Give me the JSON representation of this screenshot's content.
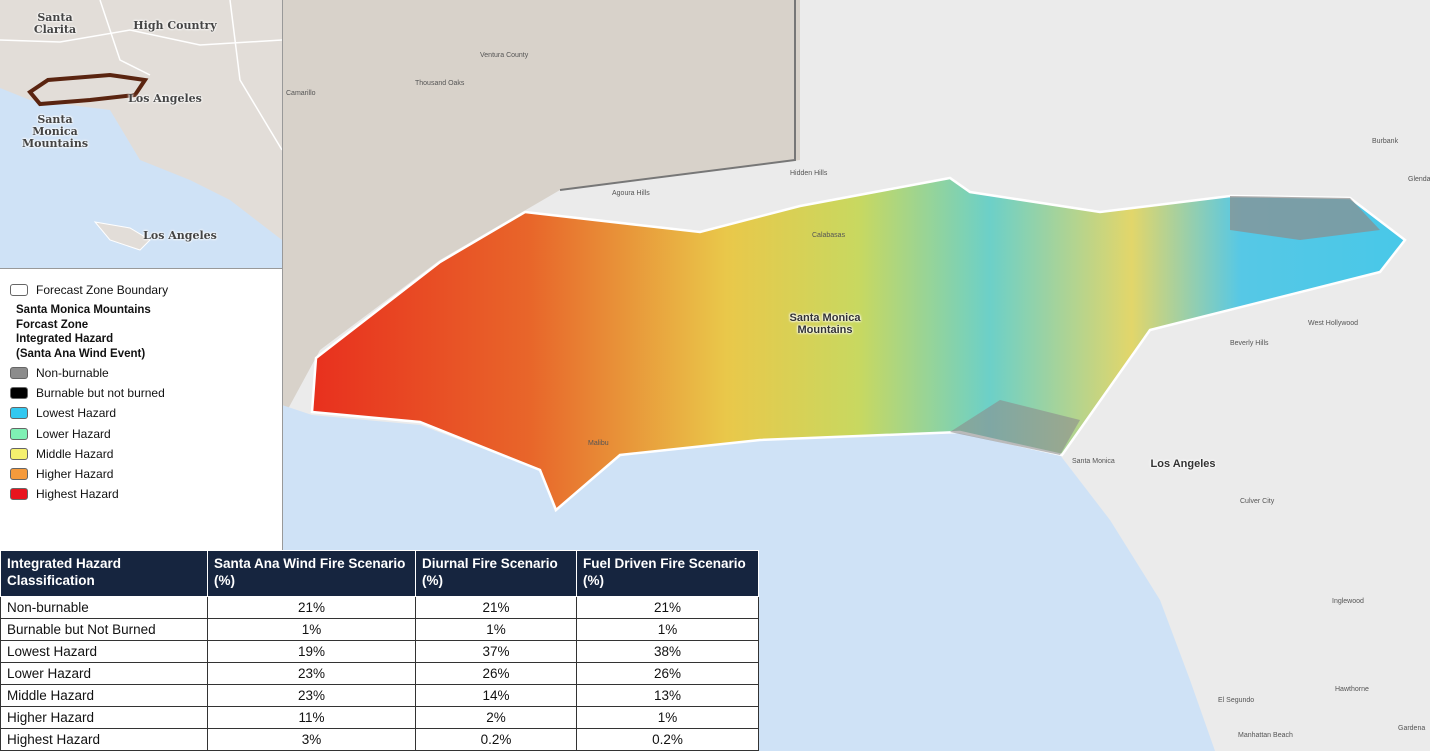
{
  "inset_map": {
    "labels": [
      "Santa Clarita",
      "High Country",
      "Los Angeles",
      "Santa Monica Mountains",
      "Los Angeles"
    ]
  },
  "legend": {
    "boundary": "Forecast Zone Boundary",
    "title": [
      "Santa Monica Mountains",
      "Forcast Zone",
      "Integrated Hazard",
      "(Santa Ana Wind Event)"
    ],
    "items": [
      {
        "label": "Non-burnable",
        "color": "#8c8c8c"
      },
      {
        "label": "Burnable but not burned",
        "color": "#000000"
      },
      {
        "label": "Lowest Hazard",
        "color": "#33c8f0"
      },
      {
        "label": "Lower Hazard",
        "color": "#7ff0b4"
      },
      {
        "label": "Middle Hazard",
        "color": "#f5f06e"
      },
      {
        "label": "Higher Hazard",
        "color": "#f59a3c"
      },
      {
        "label": "Highest Hazard",
        "color": "#e8141e"
      }
    ]
  },
  "main_map": {
    "labels": [
      "Santa Monica Mountains",
      "Los Angeles",
      "Ventura County",
      "Thousand Oaks",
      "Camarillo",
      "Agoura Hills",
      "Hidden Hills",
      "Calabasas",
      "Malibu",
      "Santa Monica",
      "Beverly Hills",
      "West Hollywood",
      "Burbank",
      "Glendale",
      "Culver City",
      "Inglewood",
      "El Segundo",
      "Hawthorne",
      "Gardena",
      "Manhattan Beach"
    ]
  },
  "table": {
    "header": [
      "Integrated Hazard Classification",
      "Santa Ana Wind Fire Scenario (%)",
      "Diurnal Fire Scenario (%)",
      "Fuel Driven Fire Scenario (%)"
    ],
    "rows": [
      [
        "Non-burnable",
        "21%",
        "21%",
        "21%"
      ],
      [
        "Burnable but Not Burned",
        "1%",
        "1%",
        "1%"
      ],
      [
        "Lowest Hazard",
        "19%",
        "37%",
        "38%"
      ],
      [
        "Lower Hazard",
        "23%",
        "26%",
        "26%"
      ],
      [
        "Middle Hazard",
        "23%",
        "14%",
        "13%"
      ],
      [
        "Higher Hazard",
        "11%",
        "2%",
        "1%"
      ],
      [
        "Highest Hazard",
        "3%",
        "0.2%",
        "0.2%"
      ]
    ]
  }
}
